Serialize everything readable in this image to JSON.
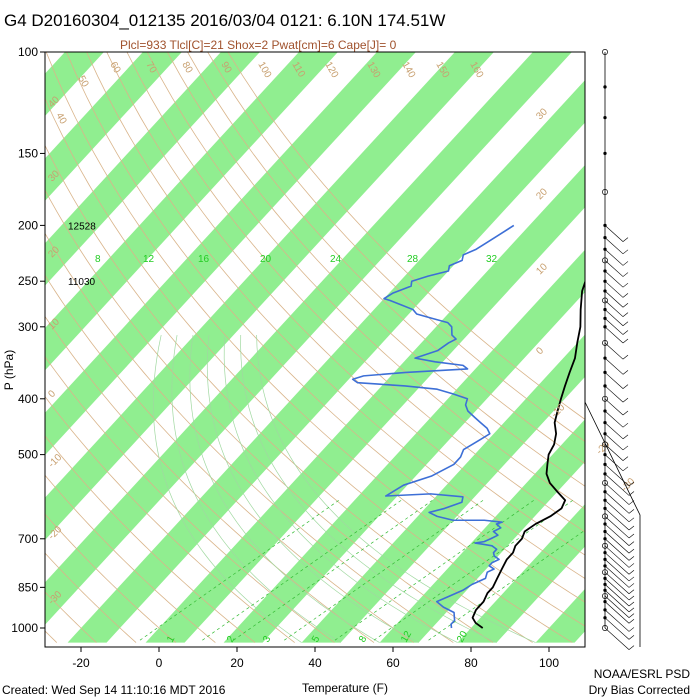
{
  "chart_data": {
    "type": "line",
    "title": "G4 D20160304_012135 2016/03/04 0121:  6.10N 174.51W",
    "subtitle": "Plcl=933 Tlcl[C]=21 Shox=2 Pwat[cm]=6 Cape[J]= 0",
    "xlabel": "Temperature (F)",
    "ylabel": "P (hPa)",
    "xlim": [
      -30,
      110
    ],
    "ylim": [
      1050,
      100
    ],
    "y_scale": "log",
    "x_ticks": [
      -20,
      0,
      20,
      40,
      60,
      80,
      100
    ],
    "y_ticks": [
      100,
      150,
      200,
      250,
      300,
      400,
      500,
      700,
      850,
      1000
    ],
    "height_labels": [
      {
        "p": 200,
        "text": "12528"
      },
      {
        "p": 250,
        "text": "11030"
      }
    ],
    "mixing_ratio_labels": [
      "8",
      "12",
      "16",
      "20",
      "24",
      "28",
      "32"
    ],
    "bottom_mixing_labels": [
      "1",
      "2",
      "3",
      "5",
      "8",
      "12",
      "20"
    ],
    "dry_adiabat_labels": [
      "40",
      "50",
      "60",
      "70",
      "80",
      "90",
      "100",
      "110",
      "120",
      "130",
      "140",
      "150",
      "160"
    ],
    "skew_iso_labels": [
      "-30",
      "-20",
      "-10",
      "0",
      "10",
      "20",
      "30"
    ],
    "left_isotherm_labels": [
      "40",
      "30",
      "20",
      "10",
      "0",
      "-10",
      "-20",
      "-30"
    ],
    "series": [
      {
        "name": "Temperature",
        "color": "#000000",
        "points": [
          [
            83,
            1000
          ],
          [
            80,
            980
          ],
          [
            78,
            960
          ],
          [
            77,
            930
          ],
          [
            77,
            900
          ],
          [
            76,
            870
          ],
          [
            76,
            850
          ],
          [
            75,
            820
          ],
          [
            74,
            790
          ],
          [
            73,
            760
          ],
          [
            73,
            740
          ],
          [
            72,
            720
          ],
          [
            72,
            700
          ],
          [
            71,
            680
          ],
          [
            72,
            660
          ],
          [
            74,
            640
          ],
          [
            75,
            620
          ],
          [
            74,
            600
          ],
          [
            70,
            580
          ],
          [
            66,
            560
          ],
          [
            63,
            540
          ],
          [
            61,
            520
          ],
          [
            59,
            500
          ],
          [
            58,
            480
          ],
          [
            56,
            460
          ],
          [
            53,
            440
          ],
          [
            51,
            420
          ],
          [
            49,
            400
          ],
          [
            47,
            380
          ],
          [
            45,
            360
          ],
          [
            43,
            340
          ],
          [
            40,
            320
          ],
          [
            37,
            300
          ],
          [
            33,
            280
          ],
          [
            29,
            260
          ],
          [
            26,
            240
          ],
          [
            22,
            220
          ],
          [
            18,
            200
          ],
          [
            14,
            190
          ],
          [
            11,
            180
          ]
        ]
      },
      {
        "name": "Dewpoint",
        "color": "#3d6fd6",
        "points": [
          [
            75,
            1000
          ],
          [
            74,
            985
          ],
          [
            74,
            970
          ],
          [
            73,
            955
          ],
          [
            72,
            940
          ],
          [
            68,
            920
          ],
          [
            65,
            900
          ],
          [
            67,
            880
          ],
          [
            69,
            860
          ],
          [
            70,
            840
          ],
          [
            72,
            820
          ],
          [
            71,
            800
          ],
          [
            72,
            790
          ],
          [
            70,
            780
          ],
          [
            70,
            770
          ],
          [
            71,
            760
          ],
          [
            69,
            750
          ],
          [
            68,
            740
          ],
          [
            68,
            730
          ],
          [
            66,
            720
          ],
          [
            63,
            715
          ],
          [
            61,
            712
          ],
          [
            63,
            708
          ],
          [
            64,
            700
          ],
          [
            65,
            690
          ],
          [
            63,
            680
          ],
          [
            64,
            670
          ],
          [
            62,
            660
          ],
          [
            63,
            655
          ],
          [
            58,
            650
          ],
          [
            50,
            650
          ],
          [
            45,
            640
          ],
          [
            42,
            630
          ],
          [
            45,
            620
          ],
          [
            48,
            605
          ],
          [
            47,
            592
          ],
          [
            38,
            585
          ],
          [
            27,
            590
          ],
          [
            29,
            565
          ],
          [
            34,
            545
          ],
          [
            37,
            520
          ],
          [
            37,
            505
          ],
          [
            36,
            490
          ],
          [
            37,
            480
          ],
          [
            38,
            470
          ],
          [
            39,
            460
          ],
          [
            37,
            450
          ],
          [
            34,
            440
          ],
          [
            31,
            430
          ],
          [
            28,
            420
          ],
          [
            26,
            410
          ],
          [
            25,
            400
          ],
          [
            20,
            392
          ],
          [
            15,
            385
          ],
          [
            6,
            380
          ],
          [
            -7,
            375
          ],
          [
            -9,
            370
          ],
          [
            -7,
            365
          ],
          [
            3,
            360
          ],
          [
            18,
            355
          ],
          [
            16,
            350
          ],
          [
            8,
            345
          ],
          [
            2,
            340
          ],
          [
            4,
            335
          ],
          [
            6,
            330
          ],
          [
            7,
            320
          ],
          [
            8,
            315
          ],
          [
            6,
            310
          ],
          [
            4,
            300
          ],
          [
            2,
            295
          ],
          [
            -3,
            290
          ],
          [
            -8,
            285
          ],
          [
            -10,
            280
          ],
          [
            -14,
            275
          ],
          [
            -18,
            270
          ],
          [
            -20,
            268
          ],
          [
            -19,
            262
          ],
          [
            -16,
            255
          ],
          [
            -17,
            250
          ],
          [
            -14,
            245
          ],
          [
            -10,
            240
          ],
          [
            -11,
            235
          ],
          [
            -9,
            230
          ],
          [
            -10,
            225
          ],
          [
            -8,
            220
          ],
          [
            -7,
            215
          ],
          [
            -6,
            210
          ],
          [
            -5,
            205
          ],
          [
            -4,
            200
          ]
        ]
      }
    ],
    "wind_barb_pressures": [
      100,
      115,
      130,
      150,
      175,
      200,
      210,
      220,
      230,
      240,
      250,
      260,
      270,
      280,
      290,
      300,
      320,
      340,
      360,
      380,
      400,
      420,
      440,
      460,
      480,
      500,
      520,
      540,
      560,
      580,
      600,
      620,
      640,
      660,
      680,
      700,
      720,
      740,
      760,
      780,
      800,
      820,
      840,
      860,
      880,
      900,
      930,
      960,
      1000
    ]
  },
  "footer": {
    "created": "Created: Wed Sep 14 11:10:16 MDT 2016",
    "org": "NOAA/ESRL PSD",
    "note": "Dry Bias Corrected"
  },
  "colors": {
    "band": "#90ee90",
    "dry_adiabat": "#d9b48a",
    "moist": "#a0d8a0",
    "temperature": "#000000",
    "dewpoint": "#3d6fd6",
    "mixing_label": "#22cc22"
  }
}
